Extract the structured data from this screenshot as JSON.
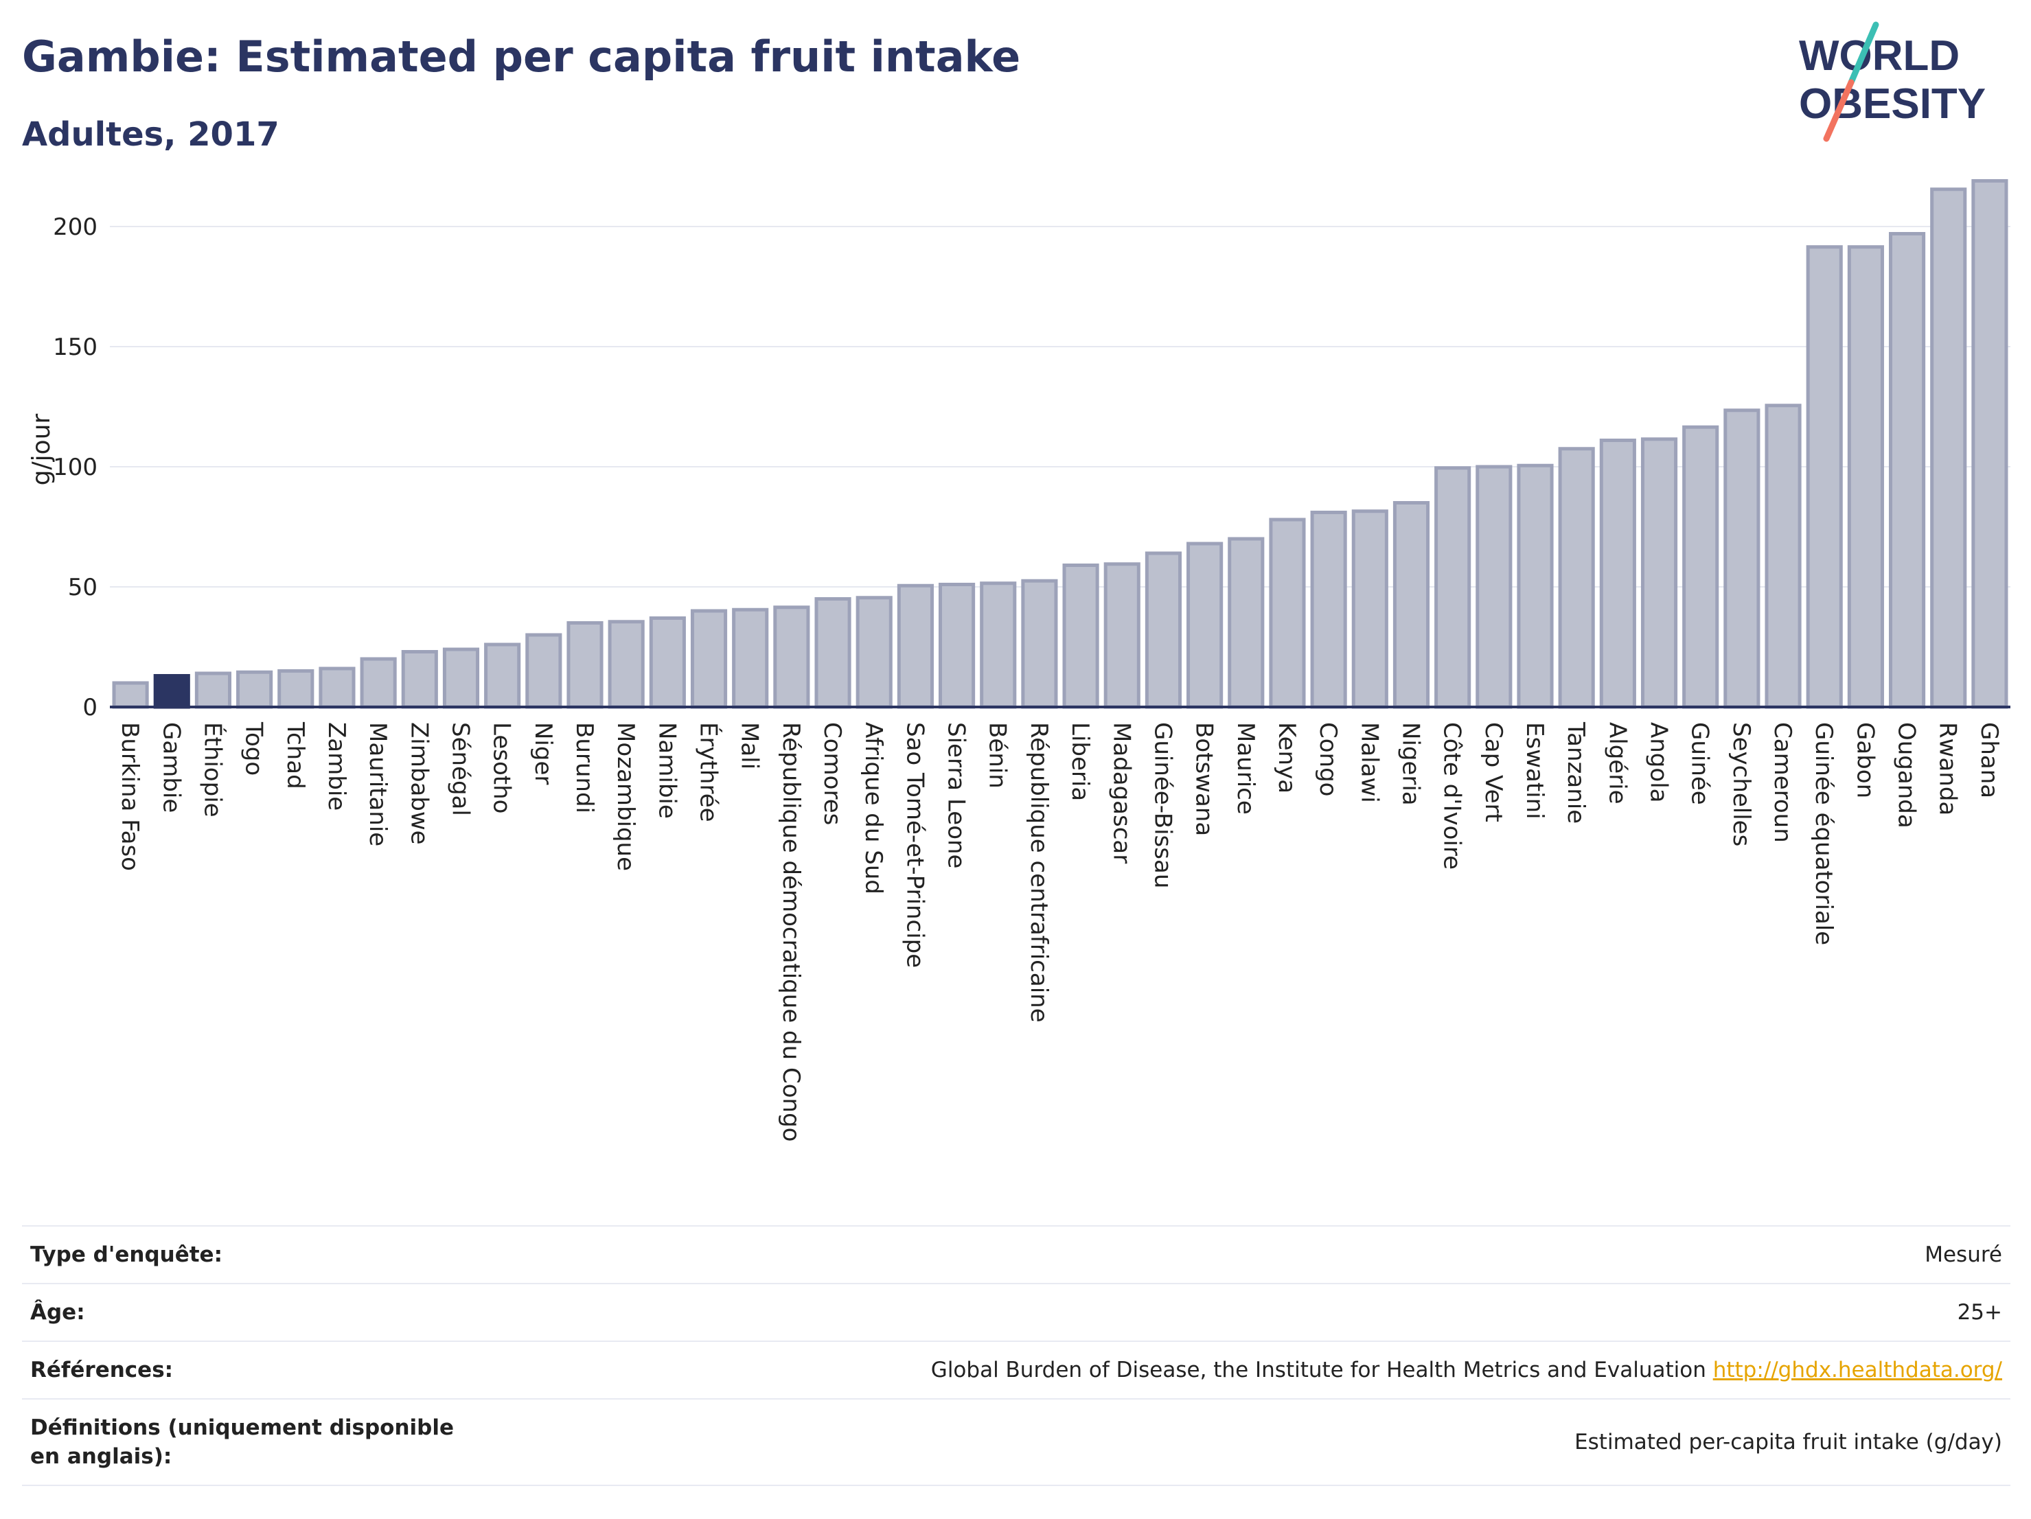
{
  "header": {
    "title": "Gambie: Estimated per capita fruit intake",
    "subtitle": "Adultes, 2017"
  },
  "logo": {
    "line1": "WORLD",
    "line2": "OBESITY"
  },
  "colors": {
    "bar": "#bcc0ce",
    "bar_border": "#9da2b9",
    "highlight": "#2b3562",
    "grid": "#e6e8f0",
    "axis": "#2b3562",
    "link": "#e6a400"
  },
  "chart_data": {
    "type": "bar",
    "ylabel": "g/jour",
    "ylim": [
      0,
      225
    ],
    "yticks": [
      0,
      50,
      100,
      150,
      200
    ],
    "highlight": "Gambie",
    "categories": [
      "Burkina Faso",
      "Gambie",
      "Éthiopie",
      "Togo",
      "Tchad",
      "Zambie",
      "Mauritanie",
      "Zimbabwe",
      "Sénégal",
      "Lesotho",
      "Niger",
      "Burundi",
      "Mozambique",
      "Namibie",
      "Érythrée",
      "Mali",
      "République démocratique du Congo",
      "Comores",
      "Afrique du Sud",
      "Sao Tomé-et-Principe",
      "Sierra Leone",
      "Bénin",
      "République centrafricaine",
      "Liberia",
      "Madagascar",
      "Guinée-Bissau",
      "Botswana",
      "Maurice",
      "Kenya",
      "Congo",
      "Malawi",
      "Nigeria",
      "Côte d'Ivoire",
      "Cap Vert",
      "Eswatini",
      "Tanzanie",
      "Algérie",
      "Angola",
      "Guinée",
      "Seychelles",
      "Cameroun",
      "Guinée équatoriale",
      "Gabon",
      "Ouganda",
      "Rwanda",
      "Ghana"
    ],
    "values": [
      10,
      13,
      14,
      14.5,
      15,
      16,
      20,
      23,
      24,
      26,
      30,
      35,
      35.5,
      37,
      40,
      40.5,
      41.5,
      45,
      45.5,
      50.5,
      51,
      51.5,
      52.5,
      59,
      59.5,
      64,
      68,
      70,
      78,
      81,
      81.5,
      85,
      99.5,
      100,
      100.5,
      107.5,
      111,
      111.5,
      116.5,
      123.5,
      125.5,
      191.5,
      191.5,
      197,
      215.5,
      219
    ]
  },
  "info": {
    "rows": [
      {
        "label": "Type d'enquête:",
        "value": "Mesuré"
      },
      {
        "label": "Âge:",
        "value": "25+"
      },
      {
        "label": "Références:",
        "value": "Global Burden of Disease, the Institute for Health Metrics and Evaluation",
        "link": "http://ghdx.healthdata.org/"
      },
      {
        "label": "Définitions (uniquement disponible en anglais):",
        "value": "Estimated per-capita fruit intake (g/day)"
      }
    ]
  }
}
